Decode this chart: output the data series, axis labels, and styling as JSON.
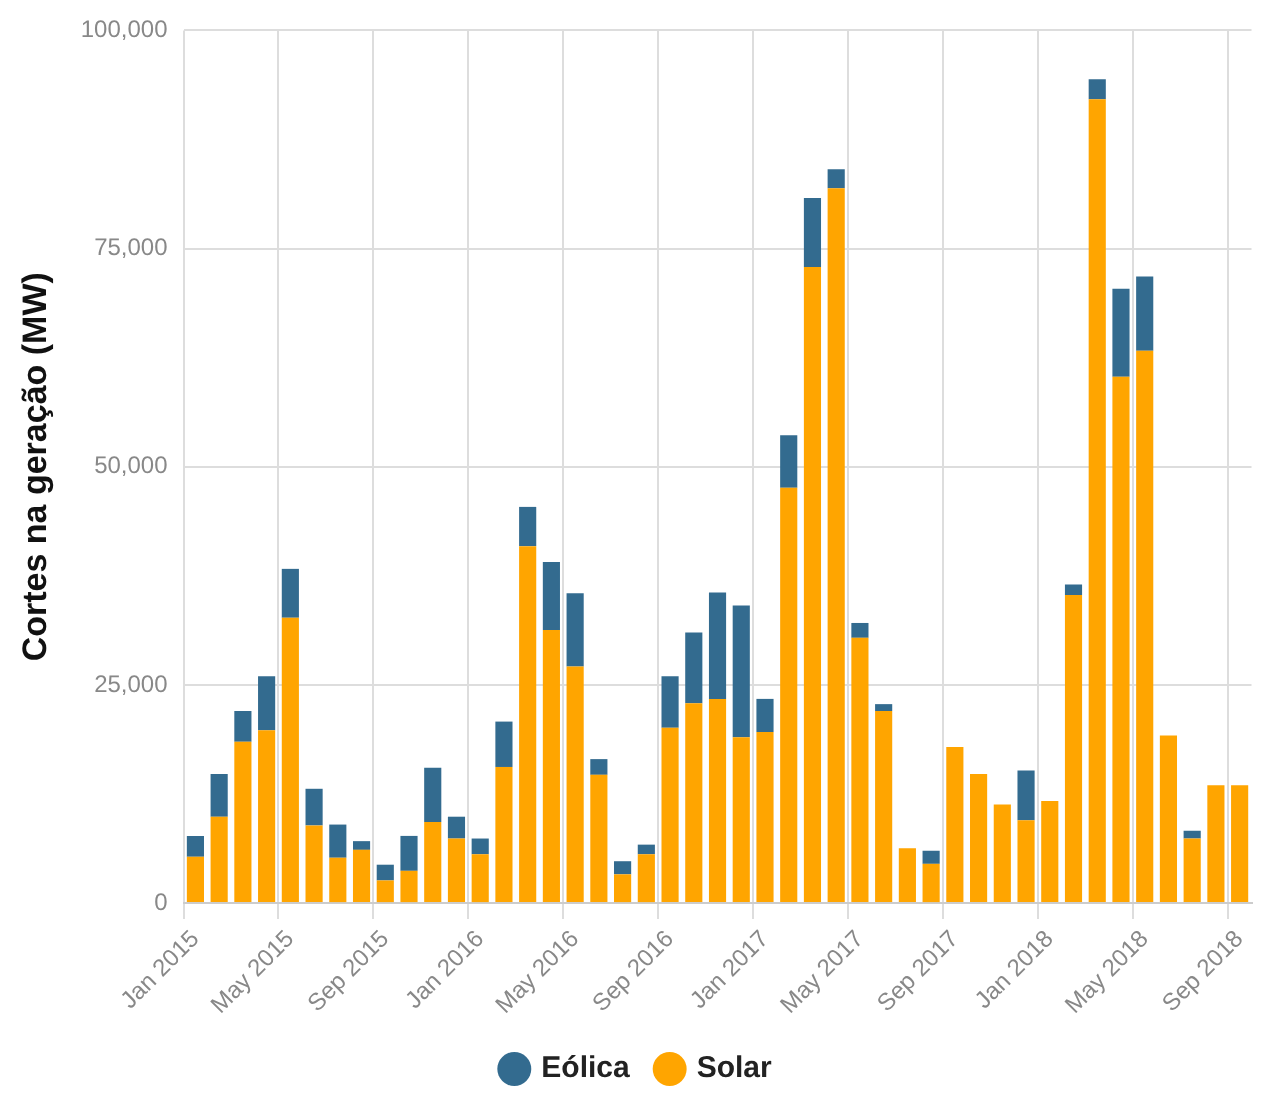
{
  "chart_data": {
    "type": "bar",
    "stacked": true,
    "ylabel": "Cortes na geração (MW)",
    "categories": [
      "Jan 2015",
      null,
      null,
      null,
      "May 2015",
      null,
      null,
      null,
      "Sep 2015",
      null,
      null,
      null,
      "Jan 2016",
      null,
      null,
      null,
      "May 2016",
      null,
      null,
      null,
      "Sep 2016",
      null,
      null,
      null,
      "Jan 2017",
      null,
      null,
      null,
      "May 2017",
      null,
      null,
      null,
      "Sep 2017",
      null,
      null,
      null,
      "Jan 2018",
      null,
      null,
      null,
      "May 2018",
      null,
      null,
      null,
      "Sep 2018"
    ],
    "series": [
      {
        "name": "Solar",
        "color": "#ffa500",
        "values": [
          5300,
          9900,
          18500,
          19800,
          32700,
          8900,
          5200,
          6100,
          2600,
          3700,
          9300,
          7400,
          5600,
          15600,
          40900,
          31300,
          27100,
          14700,
          3300,
          5600,
          20100,
          22900,
          23400,
          19000,
          19600,
          47600,
          72900,
          81900,
          30400,
          22000,
          6300,
          4500,
          17900,
          14800,
          11300,
          9500,
          11700,
          35300,
          92100,
          60300,
          63300,
          19200,
          7400,
          13500,
          13500
        ]
      },
      {
        "name": "Eólica",
        "color": "#336b8f",
        "values": [
          2400,
          4900,
          3500,
          6200,
          5600,
          4200,
          3800,
          1000,
          1800,
          4000,
          6200,
          2500,
          1800,
          5200,
          4500,
          7800,
          8400,
          1800,
          1500,
          1100,
          5900,
          8100,
          12200,
          15100,
          3800,
          6000,
          7900,
          2200,
          1700,
          800,
          0,
          1500,
          0,
          0,
          0,
          5700,
          0,
          1200,
          2300,
          10100,
          8500,
          0,
          900,
          0,
          0
        ]
      }
    ],
    "ylim": [
      0,
      100000
    ],
    "yticks": [
      {
        "value": 0,
        "label": "0"
      },
      {
        "value": 25000,
        "label": "25,000"
      },
      {
        "value": 50000,
        "label": "50,000"
      },
      {
        "value": 75000,
        "label": "75,000"
      },
      {
        "value": 100000,
        "label": "100,000"
      }
    ],
    "grid": true,
    "legend": "bottom"
  }
}
